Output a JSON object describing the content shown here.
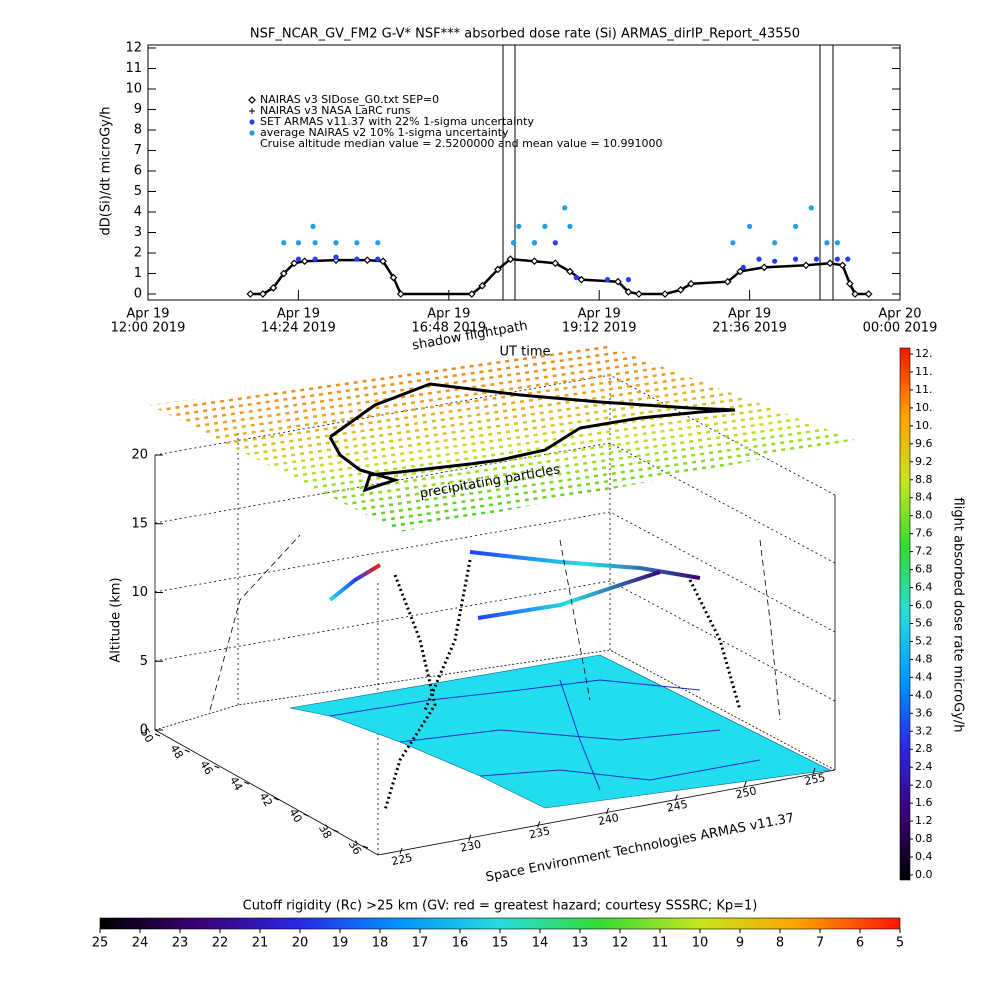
{
  "chart_data": [
    {
      "type": "line",
      "title": "NSF_NCAR_GV_FM2 G-V* NSF*** absorbed dose rate (Si) ARMAS_dirIP_Report_43550",
      "y_label": "dD(Si)/dt microGy/h",
      "x_label": "UT time",
      "annotation": "Cruise altitude median value = 2.5200000 and mean value = 10.991000",
      "xlim": [
        "2019-04-19 12:00",
        "2019-04-20 00:00"
      ],
      "xticks": [
        {
          "value": "2019-04-19 12:00",
          "label": [
            "Apr 19",
            "12:00 2019"
          ]
        },
        {
          "value": "2019-04-19 14:24",
          "label": [
            "Apr 19",
            "14:24 2019"
          ]
        },
        {
          "value": "2019-04-19 16:48",
          "label": [
            "Apr 19",
            "16:48 2019"
          ]
        },
        {
          "value": "2019-04-19 19:12",
          "label": [
            "Apr 19",
            "19:12 2019"
          ]
        },
        {
          "value": "2019-04-19 21:36",
          "label": [
            "Apr 19",
            "21:36 2019"
          ]
        },
        {
          "value": "2019-04-20 00:00",
          "label": [
            "Apr 20",
            "00:00 2019"
          ]
        }
      ],
      "ylim": [
        0,
        12
      ],
      "yticks": [
        0,
        1,
        2,
        3,
        4,
        5,
        6,
        7,
        8,
        9,
        10,
        11,
        12
      ],
      "series": [
        {
          "name": "NAIRAS v3 SIDose_G0.txt SEP=0",
          "color": "#000000",
          "marker": "diamond",
          "x": [
            "2019-04-19 13:38",
            "2019-04-19 13:50",
            "2019-04-19 14:00",
            "2019-04-19 14:10",
            "2019-04-19 14:20",
            "2019-04-19 14:30",
            "2019-04-19 15:00",
            "2019-04-19 15:30",
            "2019-04-19 15:45",
            "2019-04-19 15:55",
            "2019-04-19 16:02",
            "2019-04-19 17:10",
            "2019-04-19 17:20",
            "2019-04-19 17:35",
            "2019-04-19 17:47",
            "2019-04-19 18:10",
            "2019-04-19 18:30",
            "2019-04-19 18:44",
            "2019-04-19 18:55",
            "2019-04-19 19:30",
            "2019-04-19 19:40",
            "2019-04-19 19:50",
            "2019-04-19 20:15",
            "2019-04-19 20:30",
            "2019-04-19 20:40",
            "2019-04-19 21:15",
            "2019-04-19 21:27",
            "2019-04-19 21:50",
            "2019-04-19 22:30",
            "2019-04-19 22:53",
            "2019-04-19 23:05",
            "2019-04-19 23:12",
            "2019-04-19 23:17",
            "2019-04-19 23:30"
          ],
          "values": [
            0,
            0,
            0.3,
            1.0,
            1.5,
            1.6,
            1.65,
            1.65,
            1.6,
            0.8,
            0,
            0,
            0.4,
            1.2,
            1.7,
            1.6,
            1.5,
            1.1,
            0.7,
            0.6,
            0.1,
            0,
            0,
            0.2,
            0.5,
            0.6,
            1.1,
            1.3,
            1.4,
            1.5,
            1.4,
            0.5,
            0,
            0
          ]
        },
        {
          "name": "NAIRAS v3 NASA LaRC runs",
          "color": "#000000",
          "marker": "plus",
          "x": [],
          "values": []
        },
        {
          "name": "SET ARMAS v11.37 with 22% 1-sigma uncertainty",
          "color": "#2a3cff",
          "marker": "dot",
          "x": [
            "2019-04-19 14:24",
            "2019-04-19 14:40",
            "2019-04-19 15:00",
            "2019-04-19 15:20",
            "2019-04-19 15:40",
            "2019-04-19 17:50",
            "2019-04-19 18:10",
            "2019-04-19 18:30",
            "2019-04-19 18:50",
            "2019-04-19 19:20",
            "2019-04-19 19:40",
            "2019-04-19 21:30",
            "2019-04-19 21:45",
            "2019-04-19 22:00",
            "2019-04-19 22:20",
            "2019-04-19 22:40",
            "2019-04-19 23:00",
            "2019-04-19 23:10"
          ],
          "values": [
            1.7,
            1.7,
            1.8,
            1.7,
            1.7,
            2.5,
            2.5,
            2.5,
            0.8,
            0.7,
            0.7,
            1.3,
            1.7,
            1.6,
            1.7,
            1.7,
            1.7,
            1.7
          ]
        },
        {
          "name": "average NAIRAS v2 10% 1-sigma uncertainty",
          "color": "#1ea0e6",
          "marker": "dot",
          "x": [
            "2019-04-19 14:10",
            "2019-04-19 14:24",
            "2019-04-19 14:38",
            "2019-04-19 14:40",
            "2019-04-19 15:00",
            "2019-04-19 15:20",
            "2019-04-19 15:40",
            "2019-04-19 17:50",
            "2019-04-19 17:55",
            "2019-04-19 18:10",
            "2019-04-19 18:20",
            "2019-04-19 18:39",
            "2019-04-19 18:44",
            "2019-04-19 21:20",
            "2019-04-19 21:36",
            "2019-04-19 22:00",
            "2019-04-19 22:20",
            "2019-04-19 22:35",
            "2019-04-19 22:50",
            "2019-04-19 23:00"
          ],
          "values": [
            2.5,
            2.5,
            3.3,
            2.5,
            2.5,
            2.5,
            2.5,
            2.5,
            3.3,
            2.5,
            3.3,
            4.2,
            3.3,
            2.5,
            3.3,
            2.5,
            3.3,
            4.2,
            2.5,
            2.5
          ]
        }
      ]
    },
    {
      "type": "surface3d",
      "annotations": [
        "shadow flightpath",
        "precipitating particles",
        "Space Environment Technologies ARMAS v11.37"
      ],
      "z_label": "Altitude (km)",
      "zlim": [
        0,
        20
      ],
      "zticks": [
        0,
        5,
        10,
        15,
        20
      ],
      "latlim": [
        50,
        36
      ],
      "latticks": [
        50,
        48,
        46,
        44,
        42,
        40,
        38,
        36
      ],
      "lonlim": [
        225,
        255
      ],
      "lonticks": [
        225,
        230,
        235,
        240,
        245,
        250,
        255
      ]
    },
    {
      "type": "colorbar",
      "label": "flight absorbed dose rate microGy/h",
      "colors": [
        "#000000",
        "#3c0078",
        "#2828e6",
        "#0096ff",
        "#28dcdc",
        "#32dc32",
        "#c8e61e",
        "#ffa000",
        "#ff1400"
      ],
      "ylim": [
        0,
        11.6
      ],
      "yticks": [
        {
          "value": 0,
          "label": "0.0"
        },
        0.4,
        0.8,
        1.2,
        1.6,
        {
          "value": 2,
          "label": "2.0"
        },
        2.4,
        2.8,
        3.2,
        3.6,
        {
          "value": 4,
          "label": "4.0"
        },
        4.4,
        4.8,
        5.2,
        5.6,
        {
          "value": 6,
          "label": "6.0"
        },
        6.4,
        6.8,
        7.2,
        7.6,
        {
          "value": 8,
          "label": "8.0"
        },
        8.4,
        8.8,
        9.2,
        9.6,
        {
          "value": 10,
          "label": "10."
        },
        {
          "value": 10.4,
          "label": "10."
        },
        {
          "value": 10.8,
          "label": "11."
        },
        {
          "value": 11.2,
          "label": "11."
        },
        {
          "value": 11.6,
          "label": "12."
        }
      ]
    },
    {
      "type": "colorbar",
      "title": "Cutoff rigidity (Rc) >25 km (GV: red = greatest hazard; courtesy SSSRC; Kp=1)",
      "colors": [
        "#000000",
        "#3c0078",
        "#2828e6",
        "#0096ff",
        "#28dcdc",
        "#32dc32",
        "#c8e61e",
        "#ffa000",
        "#ff1400"
      ],
      "xlim": [
        25,
        5
      ],
      "xticks": [
        25,
        24,
        23,
        22,
        21,
        20,
        19,
        18,
        17,
        16,
        15,
        14,
        13,
        12,
        11,
        10,
        9,
        8,
        7,
        6,
        5
      ]
    }
  ]
}
